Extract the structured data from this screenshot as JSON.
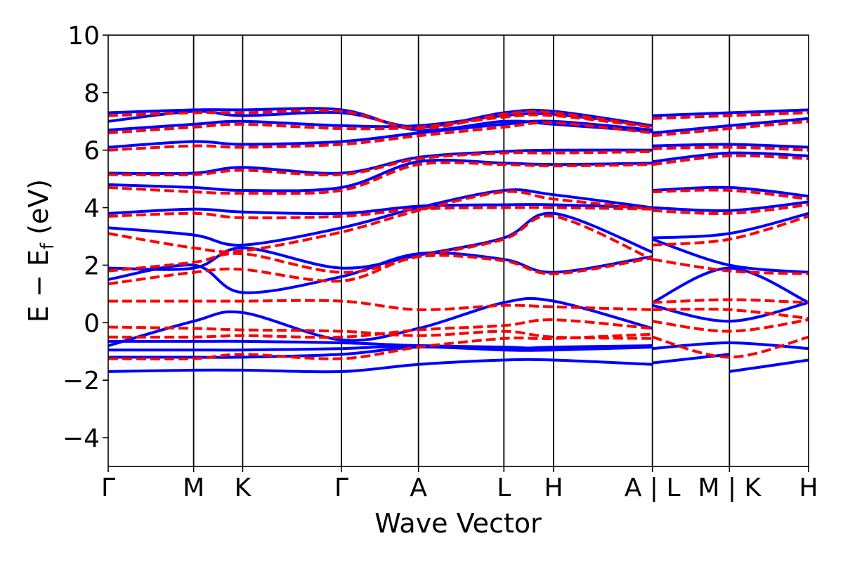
{
  "chart_data": {
    "type": "line",
    "xlabel": "Wave Vector",
    "ylabel": "E − E",
    "ylabel_sub": "f",
    "ylabel_unit": " (eV)",
    "ylim": [
      -5,
      10
    ],
    "yticks": [
      -4,
      -2,
      0,
      2,
      4,
      6,
      8,
      10
    ],
    "ytick_labels": [
      "−4",
      "−2",
      "0",
      "2",
      "4",
      "6",
      "8",
      "10"
    ],
    "xlim": [
      0,
      10
    ],
    "kpoints": [
      {
        "x": 0.0,
        "label": "Γ"
      },
      {
        "x": 1.22,
        "label": "M"
      },
      {
        "x": 1.92,
        "label": "K"
      },
      {
        "x": 3.33,
        "label": "Γ"
      },
      {
        "x": 4.43,
        "label": "A"
      },
      {
        "x": 5.65,
        "label": "L"
      },
      {
        "x": 6.36,
        "label": "H"
      },
      {
        "x": 7.77,
        "label": "A | L"
      },
      {
        "x": 8.87,
        "label": "M | K"
      },
      {
        "x": 10.0,
        "label": "H"
      }
    ],
    "grid": false,
    "legend": "none",
    "series": [
      {
        "style": "solid",
        "color": "#0000ff",
        "bands": [
          {
            "x": [
              0,
              1.22,
              1.92,
              3.33,
              4.43,
              5.65,
              6.36,
              7.77
            ],
            "y": [
              -1.7,
              -1.65,
              -1.65,
              -1.7,
              -1.45,
              -1.3,
              -1.3,
              -1.45
            ]
          },
          {
            "x": [
              7.77,
              8.87
            ],
            "y": [
              -1.4,
              -1.1
            ]
          },
          {
            "x": [
              8.87,
              10
            ],
            "y": [
              -1.7,
              -1.3
            ]
          },
          {
            "x": [
              0,
              1.22,
              1.92,
              3.33,
              4.43,
              5.65,
              6.36,
              7.77
            ],
            "y": [
              -1.2,
              -1.2,
              -1.2,
              -1.1,
              -0.85,
              -0.95,
              -0.95,
              -0.85
            ]
          },
          {
            "x": [
              0,
              1.22,
              1.92,
              3.33,
              4.43,
              5.65,
              6.36,
              7.77
            ],
            "y": [
              -0.95,
              -0.95,
              -0.95,
              -0.9,
              -0.8,
              -0.9,
              -0.85,
              -0.8
            ]
          },
          {
            "x": [
              0,
              1.22,
              1.92,
              3.33,
              4.43,
              5.65,
              6.36,
              7.77
            ],
            "y": [
              -0.65,
              -0.65,
              -0.65,
              -0.7,
              -0.8,
              -0.85,
              -0.9,
              -0.8
            ]
          },
          {
            "x": [
              7.77,
              8.87,
              10
            ],
            "y": [
              -0.9,
              -0.7,
              -0.9
            ]
          },
          {
            "x": [
              0,
              1.22,
              1.92,
              3.33,
              4.43,
              5.65,
              6.36,
              7.77
            ],
            "y": [
              -0.8,
              0.05,
              0.35,
              -0.6,
              -0.2,
              0.7,
              0.75,
              -0.2
            ]
          },
          {
            "x": [
              0,
              1.22,
              1.92,
              3.33,
              4.43,
              5.65,
              6.36,
              7.77
            ],
            "y": [
              1.5,
              2.0,
              1.05,
              1.6,
              2.4,
              2.2,
              1.75,
              2.3
            ]
          },
          {
            "x": [
              0,
              1.22,
              1.92,
              3.33,
              4.43,
              5.65,
              6.36,
              7.77
            ],
            "y": [
              1.9,
              1.9,
              2.6,
              1.9,
              2.35,
              2.95,
              3.8,
              2.45
            ]
          },
          {
            "x": [
              0,
              1.22,
              1.92,
              3.33,
              4.43,
              5.65,
              6.36,
              7.77
            ],
            "y": [
              3.3,
              3.05,
              2.7,
              3.3,
              4.0,
              4.6,
              4.45,
              4.0
            ]
          },
          {
            "x": [
              0,
              1.22,
              1.92,
              3.33,
              4.43,
              5.65,
              6.36,
              7.77
            ],
            "y": [
              3.8,
              3.95,
              3.85,
              3.8,
              4.05,
              4.1,
              4.1,
              4.0
            ]
          },
          {
            "x": [
              0,
              1.22,
              1.92,
              3.33,
              4.43,
              5.65,
              6.36,
              7.77
            ],
            "y": [
              4.8,
              4.7,
              4.6,
              4.7,
              5.6,
              5.55,
              5.5,
              5.55
            ]
          },
          {
            "x": [
              0,
              1.22,
              1.92,
              3.33,
              4.43,
              5.65,
              6.36,
              7.77
            ],
            "y": [
              5.2,
              5.2,
              5.4,
              5.2,
              5.75,
              5.95,
              6.0,
              6.0
            ]
          },
          {
            "x": [
              0,
              1.22,
              1.92,
              3.33,
              4.43,
              5.65,
              6.36,
              7.77
            ],
            "y": [
              6.1,
              6.3,
              6.2,
              6.3,
              6.6,
              6.9,
              7.0,
              6.7
            ]
          },
          {
            "x": [
              0,
              1.22,
              1.92,
              3.33,
              4.43,
              5.65,
              6.36,
              7.77
            ],
            "y": [
              6.7,
              6.9,
              7.0,
              6.85,
              6.85,
              7.2,
              7.25,
              6.85
            ]
          },
          {
            "x": [
              0,
              1.22,
              1.92,
              3.33,
              4.43,
              5.65,
              6.36,
              7.77
            ],
            "y": [
              7.0,
              7.35,
              7.2,
              7.3,
              6.8,
              7.3,
              7.35,
              6.85
            ]
          },
          {
            "x": [
              0,
              1.22,
              1.92,
              3.33,
              4.43,
              5.65,
              6.36,
              7.77
            ],
            "y": [
              7.3,
              7.4,
              7.4,
              7.4,
              6.7,
              7.0,
              6.9,
              6.65
            ]
          },
          {
            "x": [
              7.77,
              8.87,
              10
            ],
            "y": [
              0.6,
              0.05,
              0.7
            ]
          },
          {
            "x": [
              7.77,
              8.87,
              10
            ],
            "y": [
              0.7,
              1.9,
              0.7
            ]
          },
          {
            "x": [
              7.77,
              8.87,
              10
            ],
            "y": [
              2.9,
              2.0,
              1.75
            ]
          },
          {
            "x": [
              7.77,
              8.87,
              10
            ],
            "y": [
              2.95,
              3.1,
              3.8
            ]
          },
          {
            "x": [
              7.77,
              8.87,
              10
            ],
            "y": [
              4.0,
              3.9,
              4.2
            ]
          },
          {
            "x": [
              7.77,
              8.87,
              10
            ],
            "y": [
              4.6,
              4.7,
              4.4
            ]
          },
          {
            "x": [
              7.77,
              8.87,
              10
            ],
            "y": [
              5.6,
              5.9,
              5.8
            ]
          },
          {
            "x": [
              7.77,
              8.87,
              10
            ],
            "y": [
              6.15,
              6.2,
              6.1
            ]
          },
          {
            "x": [
              7.77,
              8.87,
              10
            ],
            "y": [
              6.6,
              6.85,
              7.1
            ]
          },
          {
            "x": [
              7.77,
              8.87,
              10
            ],
            "y": [
              7.2,
              7.3,
              7.4
            ]
          }
        ]
      },
      {
        "style": "dashed",
        "color": "#ff0000",
        "bands": [
          {
            "x": [
              0,
              1.22,
              1.92,
              3.33,
              4.43,
              5.65,
              6.36,
              7.77
            ],
            "y": [
              -1.25,
              -1.25,
              -1.1,
              -1.25,
              -0.85,
              -0.55,
              -0.55,
              -0.4
            ]
          },
          {
            "x": [
              0,
              1.22,
              1.92,
              3.33,
              4.43,
              5.65,
              6.36,
              7.77
            ],
            "y": [
              -0.5,
              -0.5,
              -0.45,
              -0.5,
              -0.25,
              -0.1,
              0.1,
              -0.2
            ]
          },
          {
            "x": [
              0,
              1.22,
              1.92,
              3.33,
              4.43,
              5.65,
              6.36,
              7.77
            ],
            "y": [
              -0.15,
              -0.2,
              -0.25,
              -0.3,
              -0.45,
              -0.3,
              -0.5,
              -0.55
            ]
          },
          {
            "x": [
              0,
              1.22,
              1.92,
              3.33,
              4.43,
              5.65,
              6.36,
              7.77
            ],
            "y": [
              0.75,
              0.75,
              0.75,
              0.75,
              0.45,
              0.6,
              0.55,
              0.45
            ]
          },
          {
            "x": [
              7.77,
              8.87,
              10
            ],
            "y": [
              -0.5,
              -1.2,
              -0.5
            ]
          },
          {
            "x": [
              7.77,
              8.87,
              10
            ],
            "y": [
              0.05,
              -0.3,
              0.1
            ]
          },
          {
            "x": [
              7.77,
              8.87,
              10
            ],
            "y": [
              0.45,
              0.45,
              0.15
            ]
          },
          {
            "x": [
              7.77,
              8.87,
              10
            ],
            "y": [
              0.7,
              0.8,
              0.7
            ]
          },
          {
            "x": [
              0,
              1.22,
              1.92,
              3.33,
              4.43,
              5.65,
              6.36,
              7.77
            ],
            "y": [
              1.35,
              1.75,
              1.85,
              1.45,
              2.3,
              2.15,
              1.7,
              2.25
            ]
          },
          {
            "x": [
              0,
              1.22,
              1.92,
              3.33,
              4.43,
              5.65,
              6.36,
              7.77
            ],
            "y": [
              1.8,
              2.1,
              2.4,
              1.75,
              2.3,
              2.9,
              3.7,
              2.2
            ]
          },
          {
            "x": [
              0,
              1.22,
              1.92,
              3.33,
              4.43,
              5.65,
              6.36,
              7.77
            ],
            "y": [
              3.1,
              2.6,
              2.5,
              3.15,
              3.9,
              4.55,
              4.3,
              3.95
            ]
          },
          {
            "x": [
              0,
              1.22,
              1.92,
              3.33,
              4.43,
              5.65,
              6.36,
              7.77
            ],
            "y": [
              3.7,
              3.8,
              3.65,
              3.7,
              3.95,
              4.0,
              4.0,
              3.95
            ]
          },
          {
            "x": [
              0,
              1.22,
              1.92,
              3.33,
              4.43,
              5.65,
              6.36,
              7.77
            ],
            "y": [
              4.7,
              4.55,
              4.5,
              4.6,
              5.5,
              5.5,
              5.45,
              5.5
            ]
          },
          {
            "x": [
              0,
              1.22,
              1.92,
              3.33,
              4.43,
              5.65,
              6.36,
              7.77
            ],
            "y": [
              5.15,
              5.15,
              5.3,
              5.15,
              5.7,
              5.9,
              5.9,
              5.95
            ]
          },
          {
            "x": [
              0,
              1.22,
              1.92,
              3.33,
              4.43,
              5.65,
              6.36,
              7.77
            ],
            "y": [
              6.0,
              6.15,
              6.1,
              6.2,
              6.5,
              6.8,
              6.95,
              6.6
            ]
          },
          {
            "x": [
              0,
              1.22,
              1.92,
              3.33,
              4.43,
              5.65,
              6.36,
              7.77
            ],
            "y": [
              6.6,
              6.8,
              6.9,
              6.75,
              6.8,
              7.15,
              7.2,
              6.8
            ]
          },
          {
            "x": [
              0,
              1.22,
              1.92,
              3.33,
              4.43,
              5.65,
              6.36,
              7.77
            ],
            "y": [
              7.2,
              7.3,
              7.3,
              7.35,
              6.75,
              7.25,
              7.3,
              6.8
            ]
          },
          {
            "x": [
              7.77,
              8.87,
              10
            ],
            "y": [
              2.2,
              1.8,
              1.7
            ]
          },
          {
            "x": [
              7.77,
              8.87,
              10
            ],
            "y": [
              2.7,
              2.9,
              3.7
            ]
          },
          {
            "x": [
              7.77,
              8.87,
              10
            ],
            "y": [
              3.9,
              3.8,
              4.1
            ]
          },
          {
            "x": [
              7.77,
              8.87,
              10
            ],
            "y": [
              4.55,
              4.6,
              4.3
            ]
          },
          {
            "x": [
              7.77,
              8.87,
              10
            ],
            "y": [
              5.5,
              5.8,
              5.7
            ]
          },
          {
            "x": [
              7.77,
              8.87,
              10
            ],
            "y": [
              6.05,
              6.1,
              6.0
            ]
          },
          {
            "x": [
              7.77,
              8.87,
              10
            ],
            "y": [
              6.5,
              6.75,
              7.0
            ]
          },
          {
            "x": [
              7.77,
              8.87,
              10
            ],
            "y": [
              7.1,
              7.2,
              7.3
            ]
          }
        ]
      }
    ]
  }
}
